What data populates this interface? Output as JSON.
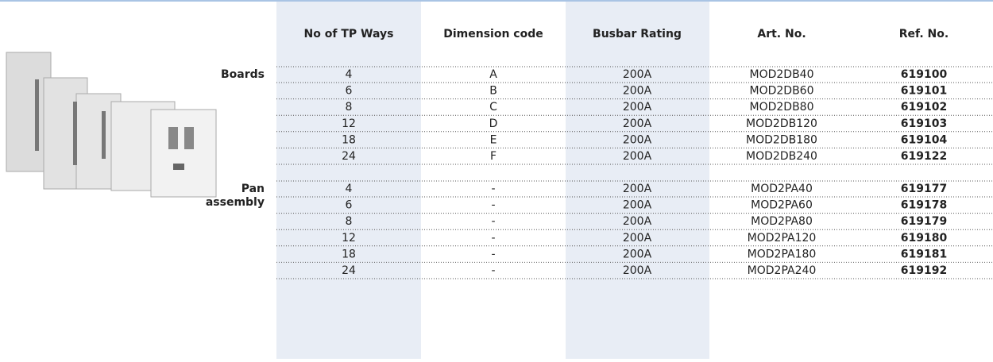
{
  "header": {
    "columns": [
      "No of TP Ways",
      "Dimension code",
      "Busbar Rating",
      "Art. No.",
      "Ref. No."
    ]
  },
  "groups": [
    {
      "label": [
        "Boards"
      ],
      "rows": [
        [
          "4",
          "A",
          "200A",
          "MOD2DB40",
          "619100"
        ],
        [
          "6",
          "B",
          "200A",
          "MOD2DB60",
          "619101"
        ],
        [
          "8",
          "C",
          "200A",
          "MOD2DB80",
          "619102"
        ],
        [
          "12",
          "D",
          "200A",
          "MOD2DB120",
          "619103"
        ],
        [
          "18",
          "E",
          "200A",
          "MOD2DB180",
          "619104"
        ],
        [
          "24",
          "F",
          "200A",
          "MOD2DB240",
          "619122"
        ]
      ]
    },
    {
      "label": [
        "Pan",
        "assembly"
      ],
      "rows": [
        [
          "4",
          "-",
          "200A",
          "MOD2PA40",
          "619177"
        ],
        [
          "6",
          "-",
          "200A",
          "MOD2PA60",
          "619178"
        ],
        [
          "8",
          "-",
          "200A",
          "MOD2PA80",
          "619179"
        ],
        [
          "12",
          "-",
          "200A",
          "MOD2PA120",
          "619180"
        ],
        [
          "18",
          "-",
          "200A",
          "MOD2PA180",
          "619181"
        ],
        [
          "24",
          "-",
          "200A",
          "MOD2PA240",
          "619192"
        ]
      ]
    }
  ]
}
